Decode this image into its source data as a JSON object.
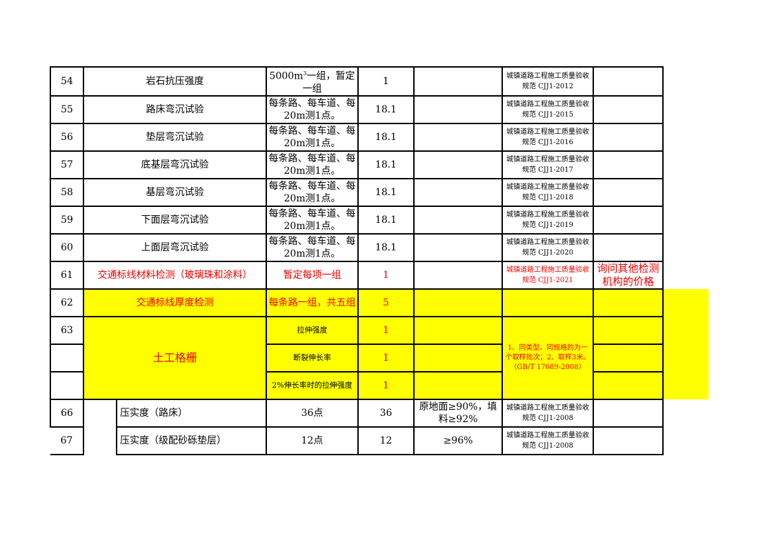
{
  "rows": [
    {
      "no": "54",
      "item": "岩石抗压强度",
      "freq_a": "5000m",
      "freq_sup": "3",
      "freq_b": "一组，暂定一组",
      "qty": "1",
      "req": "",
      "std": "城镇道路工程施工质量验收规范 CJJ1-2012",
      "remark": ""
    },
    {
      "no": "55",
      "item": "路床弯沉试验",
      "freq": "每条路、每车道、每20m测1点。",
      "qty": "18.1",
      "req": "",
      "std": "城镇道路工程施工质量验收规范 CJJ1-2015",
      "remark": ""
    },
    {
      "no": "56",
      "item": "垫层弯沉试验",
      "freq": "每条路、每车道、每20m测1点。",
      "qty": "18.1",
      "req": "",
      "std": "城镇道路工程施工质量验收规范 CJJ1-2016",
      "remark": ""
    },
    {
      "no": "57",
      "item": "底基层弯沉试验",
      "freq": "每条路、每车道、每20m测1点。",
      "qty": "18.1",
      "req": "",
      "std": "城镇道路工程施工质量验收规范 CJJ1-2017",
      "remark": ""
    },
    {
      "no": "58",
      "item": "基层弯沉试验",
      "freq": "每条路、每车道、每20m测1点。",
      "qty": "18.1",
      "req": "",
      "std": "城镇道路工程施工质量验收规范 CJJ1-2018",
      "remark": ""
    },
    {
      "no": "59",
      "item": "下面层弯沉试验",
      "freq": "每条路、每车道、每20m测1点。",
      "qty": "18.1",
      "req": "",
      "std": "城镇道路工程施工质量验收规范 CJJ1-2019",
      "remark": ""
    },
    {
      "no": "60",
      "item": "上面层弯沉试验",
      "freq": "每条路、每车道、每20m测1点。",
      "qty": "18.1",
      "req": "",
      "std": "城镇道路工程施工质量验收规范 CJJ1-2020",
      "remark": ""
    },
    {
      "no": "61",
      "item": "交通标线材料检测（玻璃珠和涂料）",
      "freq": "暂定每项一组",
      "qty": "1",
      "req": "",
      "std": "城镇道路工程施工质量验收规范 CJJ1-2021",
      "remark": "询问其他检测机构的价格"
    },
    {
      "no": "62",
      "item": "交通标线厚度检测",
      "freq": "每条路一组，共五组",
      "qty": "5",
      "req": "",
      "std": "",
      "remark": ""
    }
  ],
  "geogrid": {
    "no": "63",
    "item": "土工格栅",
    "subs": [
      {
        "freq": "拉伸强度",
        "qty": "1"
      },
      {
        "freq": "断裂伸长率",
        "qty": "1"
      },
      {
        "freq": "2%伸长率时的拉伸强度",
        "qty": "1"
      }
    ],
    "note": "1、同类型、同规格的为一个取样批次；2、取样3米。（GB/T 17689-2008）"
  },
  "rows2": [
    {
      "no": "66",
      "item": "压实度（路床）",
      "freq": "36点",
      "qty": "36",
      "req": "原地面≥90%，填料≥92%",
      "std": "城镇道路工程施工质量验收规范 CJJ1-2008",
      "remark": ""
    },
    {
      "no": "67",
      "item": "压实度（级配砂砾垫层）",
      "freq": "12点",
      "qty": "12",
      "req": "≥96%",
      "std": "城镇道路工程施工质量验收规范 CJJ1-2008",
      "remark": ""
    }
  ],
  "colors": {
    "highlight": "#ffff00",
    "red_text": "#ee0000"
  }
}
